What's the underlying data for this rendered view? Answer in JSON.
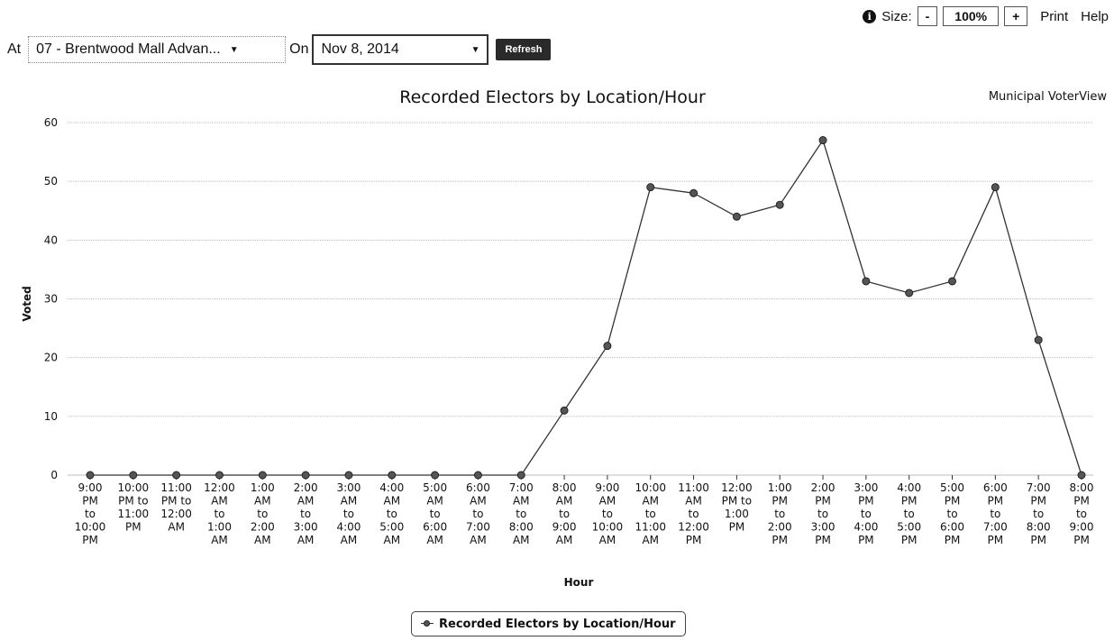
{
  "toolbar": {
    "size_label": "Size:",
    "decrease_label": "-",
    "zoom": "100%",
    "increase_label": "+",
    "print_label": "Print",
    "help_label": "Help"
  },
  "controls": {
    "at_label": "At",
    "location_value": "07 - Brentwood Mall Advan...",
    "on_label": "On",
    "date_value": "Nov 8, 2014",
    "refresh_label": "Refresh"
  },
  "brand": "Municipal VoterView",
  "chart_data": {
    "type": "line",
    "title": "Recorded Electors by Location/Hour",
    "xlabel": "Hour",
    "ylabel": "Voted",
    "ylim": [
      0,
      60
    ],
    "yticks": [
      0,
      10,
      20,
      30,
      40,
      50,
      60
    ],
    "grid": true,
    "legend_placement": "bottom-center",
    "categories": [
      [
        "9:00",
        "PM",
        "to",
        "10:00",
        "PM"
      ],
      [
        "10:00",
        "PM to",
        "11:00",
        "PM"
      ],
      [
        "11:00",
        "PM to",
        "12:00",
        "AM"
      ],
      [
        "12:00",
        "AM",
        "to",
        "1:00",
        "AM"
      ],
      [
        "1:00",
        "AM",
        "to",
        "2:00",
        "AM"
      ],
      [
        "2:00",
        "AM",
        "to",
        "3:00",
        "AM"
      ],
      [
        "3:00",
        "AM",
        "to",
        "4:00",
        "AM"
      ],
      [
        "4:00",
        "AM",
        "to",
        "5:00",
        "AM"
      ],
      [
        "5:00",
        "AM",
        "to",
        "6:00",
        "AM"
      ],
      [
        "6:00",
        "AM",
        "to",
        "7:00",
        "AM"
      ],
      [
        "7:00",
        "AM",
        "to",
        "8:00",
        "AM"
      ],
      [
        "8:00",
        "AM",
        "to",
        "9:00",
        "AM"
      ],
      [
        "9:00",
        "AM",
        "to",
        "10:00",
        "AM"
      ],
      [
        "10:00",
        "AM",
        "to",
        "11:00",
        "AM"
      ],
      [
        "11:00",
        "AM",
        "to",
        "12:00",
        "PM"
      ],
      [
        "12:00",
        "PM to",
        "1:00",
        "PM"
      ],
      [
        "1:00",
        "PM",
        "to",
        "2:00",
        "PM"
      ],
      [
        "2:00",
        "PM",
        "to",
        "3:00",
        "PM"
      ],
      [
        "3:00",
        "PM",
        "to",
        "4:00",
        "PM"
      ],
      [
        "4:00",
        "PM",
        "to",
        "5:00",
        "PM"
      ],
      [
        "5:00",
        "PM",
        "to",
        "6:00",
        "PM"
      ],
      [
        "6:00",
        "PM",
        "to",
        "7:00",
        "PM"
      ],
      [
        "7:00",
        "PM",
        "to",
        "8:00",
        "PM"
      ],
      [
        "8:00",
        "PM",
        "to",
        "9:00",
        "PM"
      ]
    ],
    "series": [
      {
        "name": "Recorded Electors by Location/Hour",
        "values": [
          0,
          0,
          0,
          0,
          0,
          0,
          0,
          0,
          0,
          0,
          0,
          11,
          22,
          49,
          48,
          44,
          46,
          57,
          33,
          31,
          33,
          49,
          23,
          0
        ]
      }
    ],
    "colors": {
      "line": "#333333",
      "marker": "#555555",
      "grid": "#bbbbbb"
    }
  }
}
